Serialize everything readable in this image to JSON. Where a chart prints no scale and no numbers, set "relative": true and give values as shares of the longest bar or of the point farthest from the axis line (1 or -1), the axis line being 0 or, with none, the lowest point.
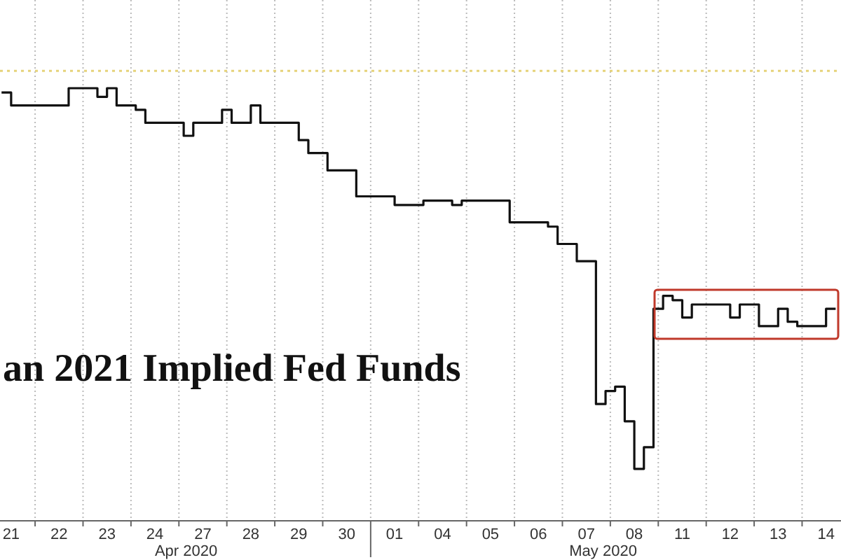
{
  "chart_data": {
    "type": "step",
    "title": "an 2021 Implied Fed Funds",
    "relative": true,
    "grid": "x",
    "line_style": "solid",
    "annotations": [
      "Apr 2020",
      "May 2020"
    ],
    "categories": [
      null,
      "21",
      null,
      null,
      null,
      null,
      "22",
      null,
      null,
      null,
      null,
      "23",
      null,
      null,
      null,
      null,
      "24",
      null,
      null,
      null,
      null,
      "27",
      null,
      null,
      null,
      null,
      "28",
      null,
      null,
      null,
      null,
      "29",
      null,
      null,
      null,
      null,
      "30",
      null,
      null,
      null,
      null,
      "01",
      null,
      null,
      null,
      null,
      "04",
      null,
      null,
      null,
      null,
      "05",
      null,
      null,
      null,
      null,
      "06",
      null,
      null,
      null,
      null,
      "07",
      null,
      null,
      null,
      null,
      "08",
      null,
      null,
      null,
      null,
      "11",
      null,
      null,
      null,
      null,
      "12",
      null,
      null,
      null,
      null,
      "13",
      null,
      null,
      null,
      null,
      "14",
      null
    ],
    "ref_lines": [
      {
        "axis": "y",
        "value": 1.04,
        "color": "#e6d37a",
        "line_style": "dotted"
      }
    ],
    "series": [
      {
        "color": "#111111",
        "values": [
          0.99,
          0.96,
          0.96,
          0.96,
          0.96,
          0.96,
          0.96,
          1.0,
          1.0,
          1.0,
          0.98,
          1.0,
          0.96,
          0.96,
          0.95,
          0.92,
          0.92,
          0.92,
          0.92,
          0.89,
          0.92,
          0.92,
          0.92,
          0.95,
          0.92,
          0.92,
          0.96,
          0.92,
          0.92,
          0.92,
          0.92,
          0.88,
          0.85,
          0.85,
          0.81,
          0.81,
          0.81,
          0.75,
          0.75,
          0.75,
          0.75,
          0.73,
          0.73,
          0.73,
          0.74,
          0.74,
          0.74,
          0.73,
          0.74,
          0.74,
          0.74,
          0.74,
          0.74,
          0.69,
          0.69,
          0.69,
          0.69,
          0.68,
          0.64,
          0.64,
          0.6,
          0.6,
          0.27,
          0.3,
          0.31,
          0.23,
          0.12,
          0.17,
          0.49,
          0.52,
          0.51,
          0.47,
          0.5,
          0.5,
          0.5,
          0.5,
          0.47,
          0.5,
          0.5,
          0.45,
          0.45,
          0.49,
          0.46,
          0.45,
          0.45,
          0.45,
          0.49,
          0.49
        ]
      }
    ]
  }
}
